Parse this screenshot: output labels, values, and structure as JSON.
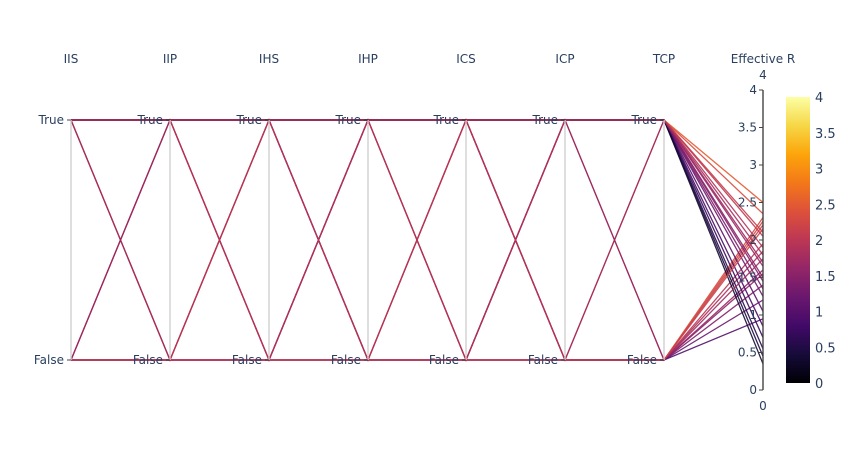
{
  "chart_data": {
    "type": "parcoords",
    "title": "",
    "dimensions": [
      {
        "label": "IIS",
        "ticktext": [
          "False",
          "True"
        ],
        "tickvals": [
          0,
          1
        ]
      },
      {
        "label": "IIP",
        "ticktext": [
          "False",
          "True"
        ],
        "tickvals": [
          0,
          1
        ]
      },
      {
        "label": "IHS",
        "ticktext": [
          "False",
          "True"
        ],
        "tickvals": [
          0,
          1
        ]
      },
      {
        "label": "IHP",
        "ticktext": [
          "False",
          "True"
        ],
        "tickvals": [
          0,
          1
        ]
      },
      {
        "label": "ICS",
        "ticktext": [
          "False",
          "True"
        ],
        "tickvals": [
          0,
          1
        ]
      },
      {
        "label": "ICP",
        "ticktext": [
          "False",
          "True"
        ],
        "tickvals": [
          0,
          1
        ]
      },
      {
        "label": "TCP",
        "ticktext": [
          "False",
          "True"
        ],
        "tickvals": [
          0,
          1
        ]
      },
      {
        "label": "Effective R",
        "range": [
          0,
          4
        ],
        "range_max_label": "4",
        "range_min_label": "0",
        "ticks": [
          0,
          0.5,
          1,
          1.5,
          2,
          2.5,
          3,
          3.5,
          4
        ],
        "ticktext": [
          "0",
          "0.5",
          "1",
          "1.5",
          "2",
          "2.5",
          "3",
          "3.5",
          "4"
        ]
      }
    ],
    "line_values": [
      [
        1,
        0,
        1,
        0,
        1,
        0,
        1,
        2.35
      ],
      [
        0,
        1,
        0,
        1,
        0,
        1,
        0,
        2.25
      ],
      [
        1,
        1,
        1,
        1,
        1,
        1,
        1,
        2.5
      ],
      [
        0,
        0,
        0,
        0,
        0,
        0,
        0,
        2.3
      ],
      [
        1,
        0,
        1,
        0,
        1,
        0,
        0,
        2.2
      ],
      [
        0,
        1,
        0,
        1,
        0,
        1,
        1,
        2.1
      ],
      [
        1,
        1,
        0,
        0,
        1,
        1,
        1,
        1.8
      ],
      [
        0,
        0,
        1,
        1,
        0,
        0,
        0,
        1.85
      ],
      [
        1,
        0,
        0,
        1,
        1,
        0,
        1,
        1.7
      ],
      [
        0,
        1,
        1,
        0,
        0,
        1,
        0,
        1.6
      ],
      [
        1,
        1,
        1,
        0,
        0,
        1,
        1,
        1.5
      ],
      [
        0,
        0,
        0,
        1,
        1,
        0,
        0,
        1.55
      ],
      [
        1,
        1,
        0,
        1,
        0,
        1,
        1,
        1.9
      ],
      [
        0,
        0,
        1,
        0,
        1,
        0,
        0,
        1.95
      ],
      [
        1,
        1,
        1,
        1,
        1,
        1,
        1,
        1.45
      ],
      [
        0,
        0,
        0,
        0,
        0,
        0,
        0,
        1.4
      ],
      [
        1,
        1,
        1,
        1,
        1,
        1,
        1,
        1.25
      ],
      [
        0,
        0,
        0,
        0,
        0,
        0,
        0,
        1.2
      ],
      [
        1,
        1,
        1,
        1,
        1,
        1,
        1,
        1.05
      ],
      [
        0,
        0,
        0,
        0,
        0,
        0,
        0,
        0.95
      ],
      [
        1,
        1,
        1,
        1,
        1,
        1,
        1,
        0.85
      ],
      [
        1,
        1,
        1,
        1,
        1,
        1,
        1,
        0.7
      ],
      [
        1,
        1,
        1,
        1,
        1,
        1,
        1,
        0.55
      ],
      [
        1,
        1,
        1,
        1,
        1,
        1,
        1,
        0.45
      ],
      [
        1,
        1,
        1,
        1,
        1,
        1,
        1,
        0.35
      ],
      [
        1,
        1,
        1,
        1,
        1,
        1,
        1,
        1.35
      ],
      [
        0,
        0,
        0,
        0,
        0,
        0,
        0,
        1.75
      ],
      [
        1,
        1,
        1,
        1,
        1,
        1,
        1,
        1.65
      ],
      [
        0,
        0,
        0,
        0,
        0,
        0,
        0,
        2.15
      ],
      [
        1,
        1,
        1,
        1,
        1,
        1,
        1,
        2.05
      ]
    ],
    "colorbar": {
      "range": [
        0,
        4
      ],
      "ticks": [
        0,
        0.5,
        1,
        1.5,
        2,
        2.5,
        3,
        3.5,
        4
      ],
      "ticktext": [
        "0",
        "0.5",
        "1",
        "1.5",
        "2",
        "2.5",
        "3",
        "3.5",
        "4"
      ],
      "colorscale": "Inferno-like",
      "stops": [
        "#000004",
        "#160b39",
        "#420a68",
        "#6a176e",
        "#932667",
        "#bc3754",
        "#dd513a",
        "#f37819",
        "#fca50a",
        "#f6d746",
        "#fcffa4"
      ]
    }
  }
}
